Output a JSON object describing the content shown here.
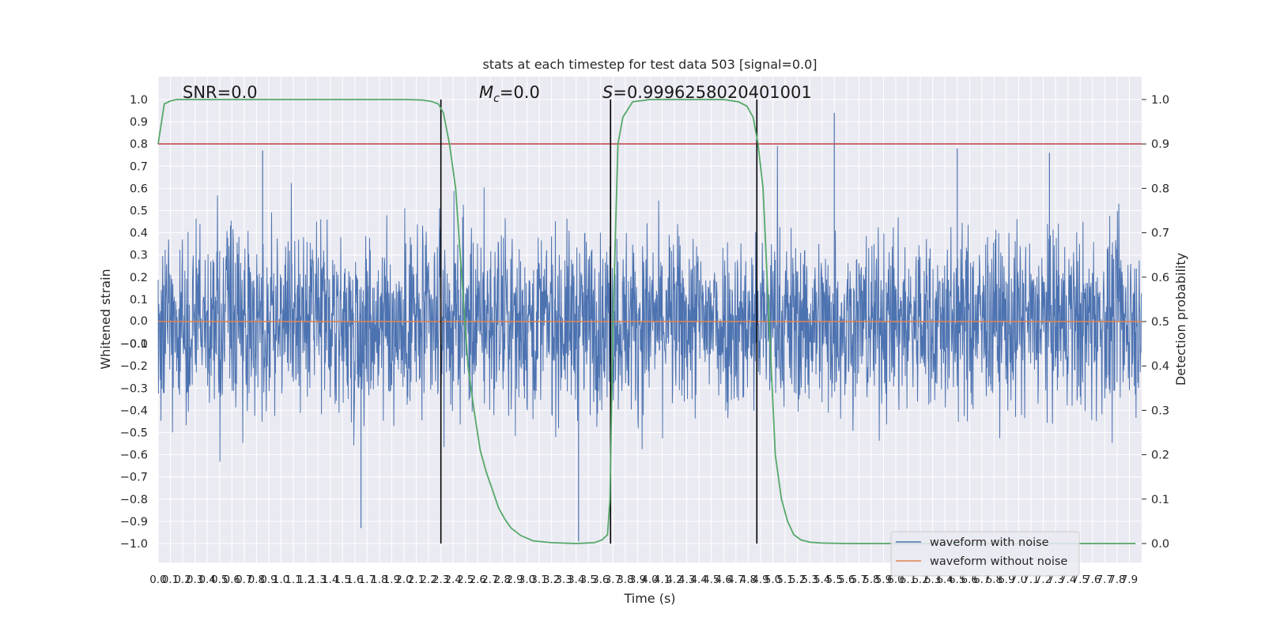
{
  "chart_data": {
    "type": "line",
    "title": "stats at each timestep for test data 503 [signal=0.0]",
    "xlabel": "Time (s)",
    "ylabel_left": "Whitened strain",
    "ylabel_right": "Detection probability",
    "xlim": [
      0.0,
      8.0
    ],
    "ylim_left": [
      -1.1,
      1.05
    ],
    "ylim_right": [
      0.0,
      1.0
    ],
    "x_ticks": [
      "0.0",
      "0.1",
      "0.2",
      "0.3",
      "0.4",
      "0.5",
      "0.6",
      "0.7",
      "0.8",
      "0.9",
      "1.0",
      "1.1",
      "1.2",
      "1.3",
      "1.4",
      "1.5",
      "1.6",
      "1.7",
      "1.8",
      "1.9",
      "2.0",
      "2.1",
      "2.2",
      "2.3",
      "2.4",
      "2.5",
      "2.6",
      "2.7",
      "2.8",
      "2.9",
      "3.0",
      "3.1",
      "3.2",
      "3.3",
      "3.4",
      "3.5",
      "3.6",
      "3.7",
      "3.8",
      "3.9",
      "4.0",
      "4.1",
      "4.2",
      "4.3",
      "4.4",
      "4.5",
      "4.6",
      "4.7",
      "4.8",
      "4.9",
      "5.0",
      "5.1",
      "5.2",
      "5.3",
      "5.4",
      "5.5",
      "5.6",
      "5.7",
      "5.8",
      "5.9",
      "6.0",
      "6.1",
      "6.2",
      "6.3",
      "6.4",
      "6.5",
      "6.6",
      "6.7",
      "6.8",
      "6.9",
      "7.0",
      "7.1",
      "7.2",
      "7.3",
      "7.4",
      "7.5",
      "7.6",
      "7.7",
      "7.8",
      "7.9"
    ],
    "y_ticks_left": [
      "1.0",
      "0.9",
      "0.8",
      "0.7",
      "0.6",
      "0.5",
      "0.4",
      "0.3",
      "0.2",
      "0.1",
      "0.0",
      "−0.0",
      "−0.1",
      "−0.2",
      "−0.3",
      "−0.4",
      "−0.5",
      "−0.6",
      "−0.7",
      "−0.8",
      "−0.9",
      "−1.0"
    ],
    "y_ticks_right": [
      "1.0",
      "0.9",
      "0.8",
      "0.7",
      "0.6",
      "0.5",
      "0.4",
      "0.3",
      "0.2",
      "0.1",
      "0.0"
    ],
    "threshold": 0.9,
    "vlines_x": [
      2.3,
      3.68,
      4.87
    ],
    "annotations": {
      "snr": "SNR=0.0",
      "mc_symbol": "M",
      "mc_sub": "c",
      "mc_value": "=0.0",
      "s_symbol": "S",
      "s_value": "=0.9996258020401001"
    },
    "series": [
      {
        "name": "waveform with noise",
        "color": "#4c72b0",
        "note": "noise strain, typical amplitude ±0.35, peaks up to ~0.94 and ~−0.99"
      },
      {
        "name": "waveform without noise",
        "color": "#dd8452",
        "values_constant": 0.0
      },
      {
        "name": "detection probability",
        "color": "#55a868",
        "x": [
          0.0,
          0.05,
          0.1,
          0.15,
          0.3,
          1.0,
          2.0,
          2.15,
          2.22,
          2.28,
          2.32,
          2.37,
          2.42,
          2.47,
          2.52,
          2.57,
          2.62,
          2.67,
          2.72,
          2.77,
          2.82,
          2.87,
          2.95,
          3.05,
          3.2,
          3.4,
          3.55,
          3.61,
          3.655,
          3.675,
          3.7,
          3.74,
          3.78,
          3.86,
          4.0,
          4.3,
          4.6,
          4.72,
          4.79,
          4.84,
          4.88,
          4.92,
          4.97,
          5.02,
          5.07,
          5.12,
          5.17,
          5.23,
          5.3,
          5.4,
          5.6,
          6.0,
          7.0,
          7.95
        ],
        "values": [
          0.9,
          0.99,
          0.997,
          1.0,
          1.0,
          1.0,
          1.0,
          0.999,
          0.996,
          0.99,
          0.97,
          0.9,
          0.8,
          0.6,
          0.4,
          0.3,
          0.21,
          0.16,
          0.12,
          0.08,
          0.055,
          0.035,
          0.018,
          0.006,
          0.002,
          0.0,
          0.002,
          0.008,
          0.02,
          0.1,
          0.5,
          0.9,
          0.96,
          0.995,
          1.0,
          1.0,
          1.0,
          0.995,
          0.985,
          0.96,
          0.9,
          0.8,
          0.5,
          0.2,
          0.1,
          0.05,
          0.02,
          0.008,
          0.003,
          0.001,
          0.0,
          0.0,
          0.0,
          0.0
        ]
      }
    ],
    "legend_location": "lower-right",
    "grid": true
  }
}
